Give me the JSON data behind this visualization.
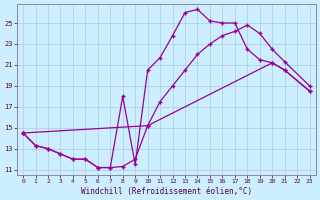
{
  "xlabel": "Windchill (Refroidissement éolien,°C)",
  "bg_color": "#cceeff",
  "grid_color": "#aaccdd",
  "line_color": "#990099",
  "ylim": [
    10.5,
    26.8
  ],
  "xlim": [
    -0.5,
    23.5
  ],
  "yticks": [
    11,
    13,
    15,
    17,
    19,
    21,
    23,
    25
  ],
  "xticks": [
    0,
    1,
    2,
    3,
    4,
    5,
    6,
    7,
    8,
    9,
    10,
    11,
    12,
    13,
    14,
    15,
    16,
    17,
    18,
    19,
    20,
    21,
    22,
    23
  ],
  "curve1_x": [
    0,
    1,
    2,
    3,
    4,
    5,
    6,
    7,
    8,
    9,
    10,
    11,
    12,
    13,
    14,
    15,
    16,
    17,
    18,
    19,
    20,
    21,
    23
  ],
  "curve1_y": [
    14.5,
    13.3,
    13.0,
    12.5,
    12.0,
    12.0,
    11.2,
    11.2,
    18.0,
    11.5,
    20.5,
    21.7,
    23.8,
    26.0,
    26.3,
    25.2,
    25.0,
    25.0,
    22.5,
    21.5,
    21.2,
    20.5,
    18.5
  ],
  "curve2_x": [
    0,
    1,
    2,
    3,
    4,
    5,
    6,
    7,
    8,
    9,
    10,
    11,
    12,
    13,
    14,
    15,
    16,
    17,
    18,
    19,
    20,
    21,
    23
  ],
  "curve2_y": [
    14.5,
    13.3,
    13.0,
    12.5,
    12.0,
    12.0,
    11.2,
    11.2,
    11.3,
    12.0,
    15.2,
    17.5,
    19.0,
    20.5,
    22.0,
    23.0,
    23.8,
    24.2,
    24.8,
    24.0,
    22.5,
    21.3,
    19.0
  ],
  "curve3_x": [
    0,
    10,
    20,
    21,
    23
  ],
  "curve3_y": [
    14.5,
    15.2,
    21.2,
    20.5,
    18.5
  ]
}
